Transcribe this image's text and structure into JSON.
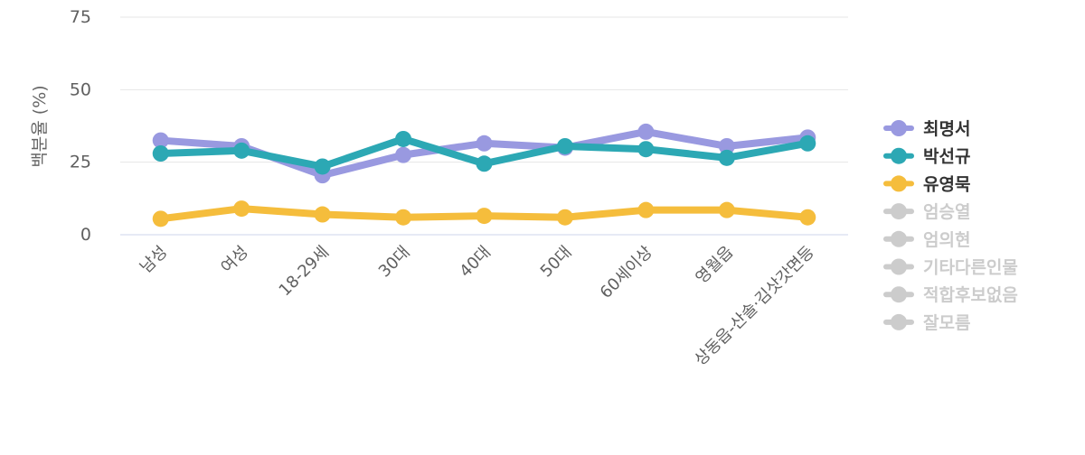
{
  "chart_data": {
    "type": "line",
    "ylabel": "백분율 (%)",
    "ylim": [
      0,
      75
    ],
    "yticks": [
      "0",
      "25",
      "50",
      "75"
    ],
    "grid": true,
    "legend_position": "right",
    "categories": [
      "남성",
      "여성",
      "18-29세",
      "30대",
      "40대",
      "50대",
      "60세이상",
      "영월읍",
      "상동읍-산솔·김삿갓면등"
    ],
    "series": [
      {
        "name": "최명서",
        "color": "#9999e0",
        "visible": true,
        "values": [
          32.5,
          30.5,
          20.5,
          27.5,
          31.5,
          30.0,
          35.5,
          30.5,
          33.5
        ]
      },
      {
        "name": "박선규",
        "color": "#2ca8b4",
        "visible": true,
        "values": [
          28.0,
          29.0,
          23.5,
          33.0,
          24.5,
          30.5,
          29.5,
          26.5,
          31.5
        ]
      },
      {
        "name": "유영묵",
        "color": "#f5bd3c",
        "visible": true,
        "values": [
          5.5,
          9.0,
          7.0,
          6.0,
          6.5,
          6.0,
          8.5,
          8.5,
          6.0
        ]
      },
      {
        "name": "엄승열",
        "color": "#cccccc",
        "visible": false
      },
      {
        "name": "엄의현",
        "color": "#cccccc",
        "visible": false
      },
      {
        "name": "기타다른인물",
        "color": "#cccccc",
        "visible": false
      },
      {
        "name": "적합후보없음",
        "color": "#cccccc",
        "visible": false
      },
      {
        "name": "잘모름",
        "color": "#cccccc",
        "visible": false
      }
    ]
  }
}
